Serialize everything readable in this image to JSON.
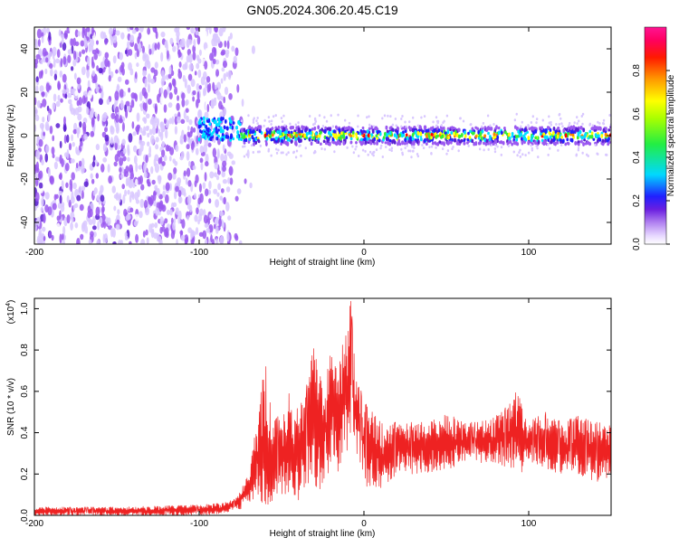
{
  "title": "GN05.2024.306.20.45.C19",
  "chart_data": [
    {
      "type": "heatmap",
      "xlabel": "Height of straight line (km)",
      "ylabel": "Frequency (Hz)",
      "xlim": [
        -200,
        150
      ],
      "ylim": [
        -50,
        50
      ],
      "x_ticks": [
        -200,
        -100,
        0,
        100
      ],
      "y_ticks": [
        -40,
        -20,
        0,
        20,
        40
      ],
      "colorbar": {
        "label": "Normalized spectral amplitude",
        "range": [
          0,
          1
        ],
        "ticks": [
          0.0,
          0.2,
          0.4,
          0.6,
          0.8
        ],
        "tick_labels": [
          "0.0",
          "0.2",
          "0.4",
          "0.6",
          "0.8"
        ]
      },
      "regions": [
        {
          "x": [
            -200,
            -75
          ],
          "description": "broadband noise across all frequencies",
          "amplitude": 0.15
        },
        {
          "x": [
            -100,
            150
          ],
          "description": "narrow band centred near 0 Hz",
          "amplitude": 0.9
        }
      ]
    },
    {
      "type": "line",
      "xlabel": "Height of straight line (km)",
      "ylabel": "SNR (10 * v/v)",
      "y_multiplier": "(x10",
      "y_multiplier_exp": "4",
      "xlim": [
        -200,
        150
      ],
      "ylim": [
        0,
        1.05
      ],
      "x_ticks": [
        -200,
        -100,
        0,
        100
      ],
      "y_ticks": [
        0.0,
        0.2,
        0.4,
        0.6,
        0.8,
        1.0
      ],
      "y_tick_labels": [
        "0.0",
        "0.2",
        "0.4",
        "0.6",
        "0.8",
        "1.0"
      ],
      "color": "#ee2222",
      "envelope": {
        "x": [
          -200,
          -150,
          -100,
          -85,
          -78,
          -70,
          -65,
          -60,
          -55,
          -50,
          -45,
          -40,
          -35,
          -30,
          -25,
          -20,
          -15,
          -10,
          -8,
          -5,
          0,
          5,
          10,
          20,
          30,
          40,
          50,
          60,
          70,
          80,
          90,
          93,
          95,
          100,
          110,
          120,
          130,
          140,
          150
        ],
        "upper": [
          0.04,
          0.04,
          0.05,
          0.06,
          0.08,
          0.2,
          0.45,
          0.75,
          0.45,
          0.5,
          0.6,
          0.52,
          0.62,
          0.85,
          0.6,
          0.8,
          0.78,
          0.9,
          1.05,
          0.7,
          0.55,
          0.5,
          0.45,
          0.45,
          0.45,
          0.45,
          0.5,
          0.45,
          0.45,
          0.48,
          0.55,
          0.65,
          0.55,
          0.45,
          0.5,
          0.45,
          0.48,
          0.45,
          0.45
        ],
        "lower": [
          0.0,
          0.0,
          0.0,
          0.01,
          0.02,
          0.05,
          0.08,
          0.05,
          0.04,
          0.1,
          0.1,
          0.05,
          0.1,
          0.15,
          0.08,
          0.25,
          0.2,
          0.3,
          0.4,
          0.3,
          0.15,
          0.12,
          0.1,
          0.2,
          0.2,
          0.2,
          0.22,
          0.25,
          0.25,
          0.25,
          0.22,
          0.12,
          0.2,
          0.25,
          0.22,
          0.2,
          0.2,
          0.16,
          0.18
        ]
      }
    }
  ],
  "colors": {
    "heatmap_scale": [
      "#ffffff",
      "#d9c8ff",
      "#9b59f0",
      "#5a1fd1",
      "#2020ff",
      "#00e0ff",
      "#33ee33",
      "#ffff00",
      "#ff8800",
      "#ff0000",
      "#ff1493"
    ],
    "line": "#ee2222"
  }
}
